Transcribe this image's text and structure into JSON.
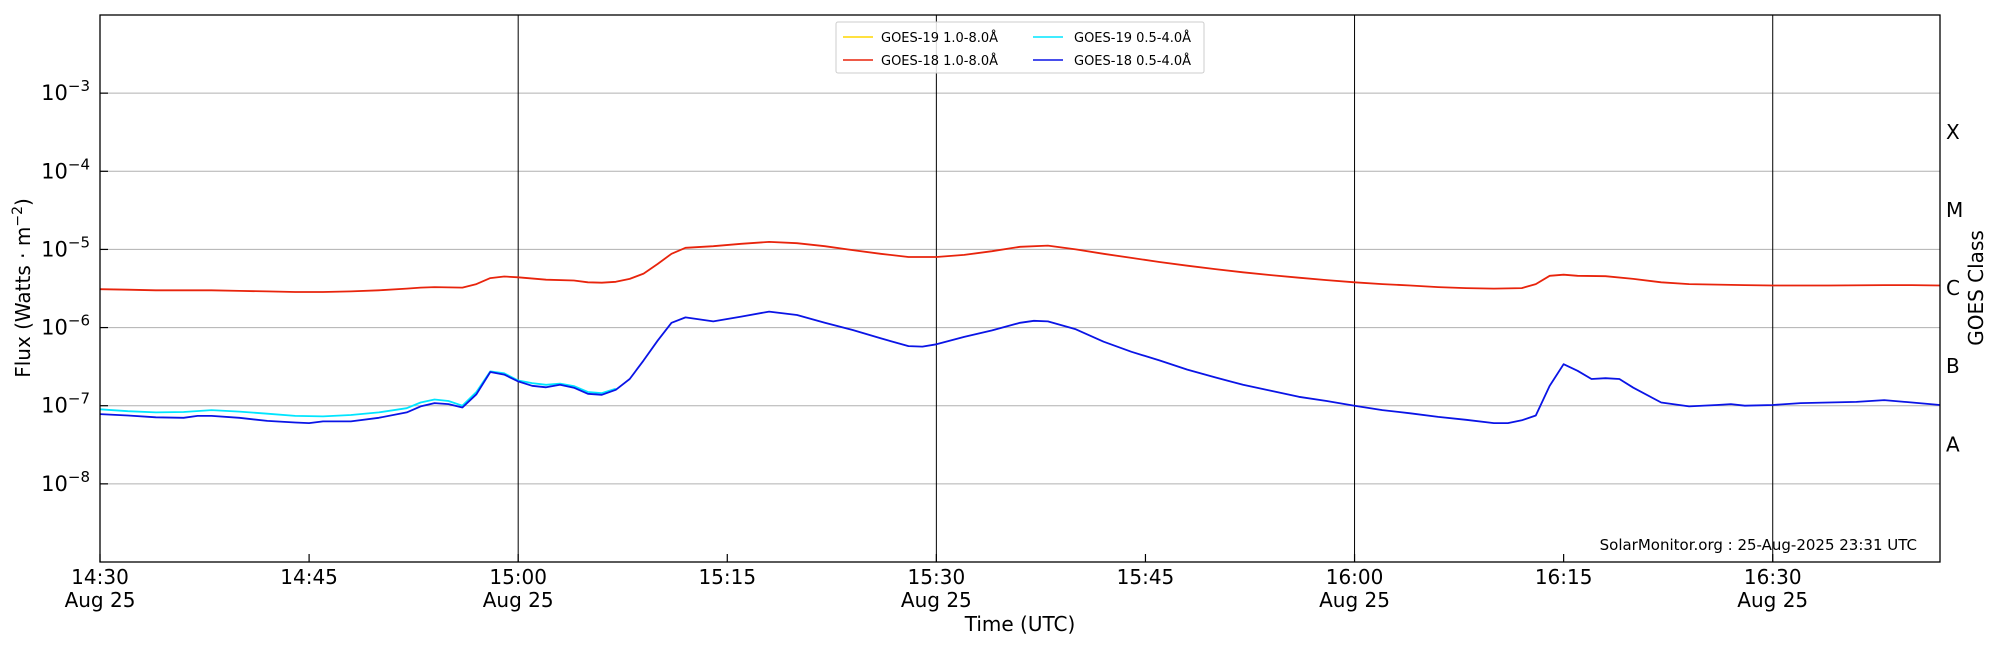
{
  "chart_data": {
    "type": "line",
    "title": "",
    "xlabel": "Time (UTC)",
    "ylabel_base": "Flux (Watts · m",
    "ylabel_sup": "−2",
    "ylabel_end": ")",
    "y2label": "GOES Class",
    "yscale": "log",
    "ylim": [
      1e-09,
      0.01
    ],
    "xlim": [
      "14:30",
      "16:42"
    ],
    "x_unit": "minutes",
    "y_ticks": [
      {
        "value": 1e-08,
        "base": "10",
        "exp": "−8"
      },
      {
        "value": 1e-07,
        "base": "10",
        "exp": "−7"
      },
      {
        "value": 1e-06,
        "base": "10",
        "exp": "−6"
      },
      {
        "value": 1e-05,
        "base": "10",
        "exp": "−5"
      },
      {
        "value": 0.0001,
        "base": "10",
        "exp": "−4"
      },
      {
        "value": 0.001,
        "base": "10",
        "exp": "−3"
      }
    ],
    "x_ticks": [
      {
        "time": "14:30",
        "label": "14:30",
        "date": "Aug 25",
        "vline": false
      },
      {
        "time": "14:45",
        "label": "14:45",
        "date": "",
        "vline": false
      },
      {
        "time": "15:00",
        "label": "15:00",
        "date": "Aug 25",
        "vline": true
      },
      {
        "time": "15:15",
        "label": "15:15",
        "date": "",
        "vline": false
      },
      {
        "time": "15:30",
        "label": "15:30",
        "date": "Aug 25",
        "vline": true
      },
      {
        "time": "15:45",
        "label": "15:45",
        "date": "",
        "vline": false
      },
      {
        "time": "16:00",
        "label": "16:00",
        "date": "Aug 25",
        "vline": true
      },
      {
        "time": "16:15",
        "label": "16:15",
        "date": "",
        "vline": false
      },
      {
        "time": "16:30",
        "label": "16:30",
        "date": "Aug 25",
        "vline": true
      }
    ],
    "goes_classes": [
      {
        "label": "A",
        "value": 3.2e-08
      },
      {
        "label": "B",
        "value": 3.2e-07
      },
      {
        "label": "C",
        "value": 3.2e-06
      },
      {
        "label": "M",
        "value": 3.2e-05
      },
      {
        "label": "X",
        "value": 0.00032
      }
    ],
    "grid": true,
    "legend_position": "top-center",
    "credit": "SolarMonitor.org : 25-Aug-2025 23:31 UTC",
    "series": [
      {
        "name": "GOES-19 1.0-8.0Å",
        "color": "#ffd700",
        "points": []
      },
      {
        "name": "GOES-19 0.5-4.0Å",
        "color": "#00e5ff",
        "points": [
          [
            "14:30",
            9e-08
          ],
          [
            "14:32",
            8.5e-08
          ],
          [
            "14:34",
            8.2e-08
          ],
          [
            "14:36",
            8.3e-08
          ],
          [
            "14:38",
            8.8e-08
          ],
          [
            "14:40",
            8.4e-08
          ],
          [
            "14:42",
            7.9e-08
          ],
          [
            "14:44",
            7.4e-08
          ],
          [
            "14:46",
            7.3e-08
          ],
          [
            "14:48",
            7.6e-08
          ],
          [
            "14:50",
            8.2e-08
          ],
          [
            "14:52",
            9.3e-08
          ],
          [
            "14:53",
            1.1e-07
          ],
          [
            "14:54",
            1.2e-07
          ],
          [
            "14:55",
            1.15e-07
          ],
          [
            "14:56",
            1e-07
          ],
          [
            "14:57",
            1.5e-07
          ],
          [
            "14:58",
            2.75e-07
          ],
          [
            "14:59",
            2.6e-07
          ],
          [
            "15:00",
            2.1e-07
          ],
          [
            "15:01",
            1.95e-07
          ],
          [
            "15:02",
            1.85e-07
          ],
          [
            "15:03",
            1.92e-07
          ],
          [
            "15:04",
            1.78e-07
          ],
          [
            "15:05",
            1.5e-07
          ],
          [
            "15:06",
            1.45e-07
          ],
          [
            "15:07",
            1.65e-07
          ]
        ]
      },
      {
        "name": "GOES-18 1.0-8.0Å",
        "color": "#e8240c",
        "points": [
          [
            "14:30",
            3.1e-06
          ],
          [
            "14:32",
            3.05e-06
          ],
          [
            "14:34",
            3e-06
          ],
          [
            "14:36",
            3e-06
          ],
          [
            "14:38",
            3e-06
          ],
          [
            "14:40",
            2.95e-06
          ],
          [
            "14:42",
            2.9e-06
          ],
          [
            "14:44",
            2.85e-06
          ],
          [
            "14:46",
            2.85e-06
          ],
          [
            "14:48",
            2.9e-06
          ],
          [
            "14:50",
            3e-06
          ],
          [
            "14:52",
            3.15e-06
          ],
          [
            "14:53",
            3.25e-06
          ],
          [
            "14:54",
            3.3e-06
          ],
          [
            "14:56",
            3.25e-06
          ],
          [
            "14:57",
            3.6e-06
          ],
          [
            "14:58",
            4.3e-06
          ],
          [
            "14:59",
            4.5e-06
          ],
          [
            "15:00",
            4.4e-06
          ],
          [
            "15:02",
            4.1e-06
          ],
          [
            "15:04",
            4e-06
          ],
          [
            "15:05",
            3.8e-06
          ],
          [
            "15:06",
            3.75e-06
          ],
          [
            "15:07",
            3.85e-06
          ],
          [
            "15:08",
            4.2e-06
          ],
          [
            "15:09",
            4.9e-06
          ],
          [
            "15:10",
            6.5e-06
          ],
          [
            "15:11",
            8.8e-06
          ],
          [
            "15:12",
            1.05e-05
          ],
          [
            "15:14",
            1.1e-05
          ],
          [
            "15:16",
            1.18e-05
          ],
          [
            "15:18",
            1.25e-05
          ],
          [
            "15:20",
            1.2e-05
          ],
          [
            "15:22",
            1.1e-05
          ],
          [
            "15:24",
            9.8e-06
          ],
          [
            "15:26",
            8.8e-06
          ],
          [
            "15:28",
            8e-06
          ],
          [
            "15:30",
            8e-06
          ],
          [
            "15:32",
            8.5e-06
          ],
          [
            "15:34",
            9.5e-06
          ],
          [
            "15:36",
            1.08e-05
          ],
          [
            "15:38",
            1.12e-05
          ],
          [
            "15:40",
            1e-05
          ],
          [
            "15:42",
            8.8e-06
          ],
          [
            "15:44",
            7.8e-06
          ],
          [
            "15:46",
            6.9e-06
          ],
          [
            "15:48",
            6.2e-06
          ],
          [
            "15:50",
            5.6e-06
          ],
          [
            "15:52",
            5.1e-06
          ],
          [
            "15:54",
            4.7e-06
          ],
          [
            "15:56",
            4.35e-06
          ],
          [
            "15:58",
            4.05e-06
          ],
          [
            "16:00",
            3.8e-06
          ],
          [
            "16:02",
            3.6e-06
          ],
          [
            "16:04",
            3.45e-06
          ],
          [
            "16:06",
            3.3e-06
          ],
          [
            "16:08",
            3.2e-06
          ],
          [
            "16:10",
            3.15e-06
          ],
          [
            "16:12",
            3.2e-06
          ],
          [
            "16:13",
            3.6e-06
          ],
          [
            "16:14",
            4.6e-06
          ],
          [
            "16:15",
            4.75e-06
          ],
          [
            "16:16",
            4.6e-06
          ],
          [
            "16:18",
            4.55e-06
          ],
          [
            "16:20",
            4.2e-06
          ],
          [
            "16:22",
            3.8e-06
          ],
          [
            "16:24",
            3.6e-06
          ],
          [
            "16:26",
            3.55e-06
          ],
          [
            "16:28",
            3.5e-06
          ],
          [
            "16:30",
            3.45e-06
          ],
          [
            "16:34",
            3.45e-06
          ],
          [
            "16:38",
            3.5e-06
          ],
          [
            "16:40",
            3.5e-06
          ],
          [
            "16:42",
            3.45e-06
          ]
        ]
      },
      {
        "name": "GOES-18 0.5-4.0Å",
        "color": "#0a14e6",
        "points": [
          [
            "14:30",
            7.8e-08
          ],
          [
            "14:32",
            7.5e-08
          ],
          [
            "14:34",
            7.1e-08
          ],
          [
            "14:36",
            7e-08
          ],
          [
            "14:37",
            7.4e-08
          ],
          [
            "14:38",
            7.4e-08
          ],
          [
            "14:40",
            7e-08
          ],
          [
            "14:42",
            6.4e-08
          ],
          [
            "14:44",
            6.1e-08
          ],
          [
            "14:45",
            6e-08
          ],
          [
            "14:46",
            6.3e-08
          ],
          [
            "14:48",
            6.3e-08
          ],
          [
            "14:50",
            7e-08
          ],
          [
            "14:52",
            8.2e-08
          ],
          [
            "14:53",
            9.8e-08
          ],
          [
            "14:54",
            1.08e-07
          ],
          [
            "14:55",
            1.05e-07
          ],
          [
            "14:56",
            9.5e-08
          ],
          [
            "14:57",
            1.4e-07
          ],
          [
            "14:58",
            2.7e-07
          ],
          [
            "14:59",
            2.5e-07
          ],
          [
            "15:00",
            2.05e-07
          ],
          [
            "15:01",
            1.8e-07
          ],
          [
            "15:02",
            1.72e-07
          ],
          [
            "15:03",
            1.85e-07
          ],
          [
            "15:04",
            1.7e-07
          ],
          [
            "15:05",
            1.42e-07
          ],
          [
            "15:06",
            1.38e-07
          ],
          [
            "15:07",
            1.6e-07
          ],
          [
            "15:08",
            2.2e-07
          ],
          [
            "15:09",
            3.8e-07
          ],
          [
            "15:10",
            6.8e-07
          ],
          [
            "15:11",
            1.15e-06
          ],
          [
            "15:12",
            1.35e-06
          ],
          [
            "15:14",
            1.2e-06
          ],
          [
            "15:16",
            1.38e-06
          ],
          [
            "15:18",
            1.6e-06
          ],
          [
            "15:20",
            1.45e-06
          ],
          [
            "15:22",
            1.15e-06
          ],
          [
            "15:24",
            9.3e-07
          ],
          [
            "15:26",
            7.3e-07
          ],
          [
            "15:28",
            5.8e-07
          ],
          [
            "15:29",
            5.7e-07
          ],
          [
            "15:30",
            6.1e-07
          ],
          [
            "15:32",
            7.6e-07
          ],
          [
            "15:34",
            9.2e-07
          ],
          [
            "15:36",
            1.15e-06
          ],
          [
            "15:37",
            1.22e-06
          ],
          [
            "15:38",
            1.2e-06
          ],
          [
            "15:40",
            9.5e-07
          ],
          [
            "15:42",
            6.6e-07
          ],
          [
            "15:44",
            4.9e-07
          ],
          [
            "15:46",
            3.8e-07
          ],
          [
            "15:48",
            2.9e-07
          ],
          [
            "15:50",
            2.3e-07
          ],
          [
            "15:52",
            1.85e-07
          ],
          [
            "15:54",
            1.55e-07
          ],
          [
            "15:56",
            1.3e-07
          ],
          [
            "15:58",
            1.15e-07
          ],
          [
            "16:00",
            1e-07
          ],
          [
            "16:02",
            8.8e-08
          ],
          [
            "16:04",
            8e-08
          ],
          [
            "16:06",
            7.2e-08
          ],
          [
            "16:08",
            6.6e-08
          ],
          [
            "16:10",
            6e-08
          ],
          [
            "16:11",
            6e-08
          ],
          [
            "16:12",
            6.5e-08
          ],
          [
            "16:13",
            7.5e-08
          ],
          [
            "16:14",
            1.8e-07
          ],
          [
            "16:15",
            3.4e-07
          ],
          [
            "16:16",
            2.8e-07
          ],
          [
            "16:17",
            2.2e-07
          ],
          [
            "16:18",
            2.25e-07
          ],
          [
            "16:19",
            2.2e-07
          ],
          [
            "16:20",
            1.7e-07
          ],
          [
            "16:22",
            1.1e-07
          ],
          [
            "16:24",
            9.8e-08
          ],
          [
            "16:26",
            1.02e-07
          ],
          [
            "16:27",
            1.05e-07
          ],
          [
            "16:28",
            1e-07
          ],
          [
            "16:30",
            1.02e-07
          ],
          [
            "16:32",
            1.08e-07
          ],
          [
            "16:34",
            1.1e-07
          ],
          [
            "16:36",
            1.12e-07
          ],
          [
            "16:37",
            1.15e-07
          ],
          [
            "16:38",
            1.18e-07
          ],
          [
            "16:40",
            1.1e-07
          ],
          [
            "16:42",
            1.02e-07
          ]
        ]
      }
    ]
  }
}
